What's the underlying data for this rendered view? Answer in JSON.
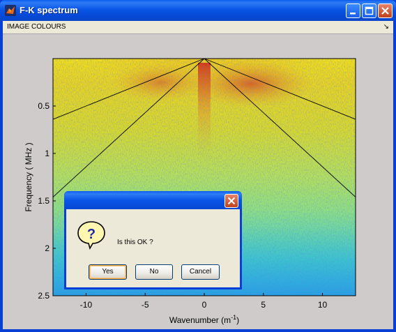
{
  "window": {
    "title": "F-K spectrum",
    "controls": [
      "minimize-icon",
      "maximize-icon",
      "close-icon"
    ],
    "colors": {
      "titlebar": "#0a55e6",
      "client": "#cfcbcb",
      "menubar": "#ece9d8"
    }
  },
  "menubar": {
    "items": [
      "IMAGE COLOURS"
    ],
    "arrow_glyph": "↘"
  },
  "plot": {
    "ylabel": "Frequency ( MHz )",
    "xlabel_base": "Wavenumber (m",
    "xlabel_sup": "-1",
    "xlabel_end": ")",
    "yticks": [
      "0.5",
      "1",
      "1.5",
      "2",
      "2.5"
    ],
    "xticks": [
      "-10",
      "-5",
      "0",
      "5",
      "10"
    ]
  },
  "chart_data": {
    "type": "heatmap",
    "title": "",
    "xlabel": "Wavenumber (m-1)",
    "ylabel": "Frequency ( MHz )",
    "xlim": [
      -12.8,
      12.8
    ],
    "ylim": [
      0,
      2.5
    ],
    "y_reversed": true,
    "xticks": [
      -10,
      -5,
      0,
      5,
      10
    ],
    "yticks": [
      0.5,
      1,
      1.5,
      2,
      2.5
    ],
    "colormap": "jet",
    "overlay_lines": [
      {
        "name": "velocity-line-1",
        "from": [
          0,
          0
        ],
        "to": [
          -12.8,
          0.64
        ]
      },
      {
        "name": "velocity-line-2",
        "from": [
          0,
          0
        ],
        "to": [
          -12.8,
          1.46
        ]
      },
      {
        "name": "velocity-line-3",
        "from": [
          0,
          0
        ],
        "to": [
          12.8,
          0.64
        ]
      },
      {
        "name": "velocity-line-4",
        "from": [
          0,
          0
        ],
        "to": [
          12.8,
          1.46
        ]
      }
    ]
  },
  "dialog": {
    "message": "Is this OK ?",
    "icon": "question-icon",
    "buttons": {
      "yes": "Yes",
      "no": "No",
      "cancel": "Cancel"
    },
    "default_button": "yes"
  }
}
